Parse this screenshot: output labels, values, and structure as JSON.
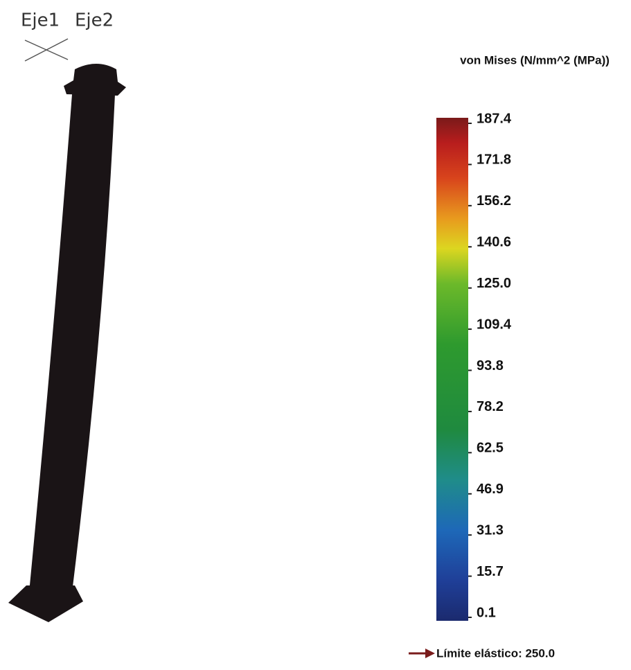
{
  "axes": {
    "x_label": "Eje1",
    "y_label": "Eje2"
  },
  "legend": {
    "title": "von Mises (N/mm^2 (MPa))",
    "ticks": [
      "187.4",
      "171.8",
      "156.2",
      "140.6",
      "125.0",
      "109.4",
      "93.8",
      "78.2",
      "62.5",
      "46.9",
      "31.3",
      "15.7",
      "0.1"
    ]
  },
  "yield_limit": "Límite elástico: 250.0"
}
